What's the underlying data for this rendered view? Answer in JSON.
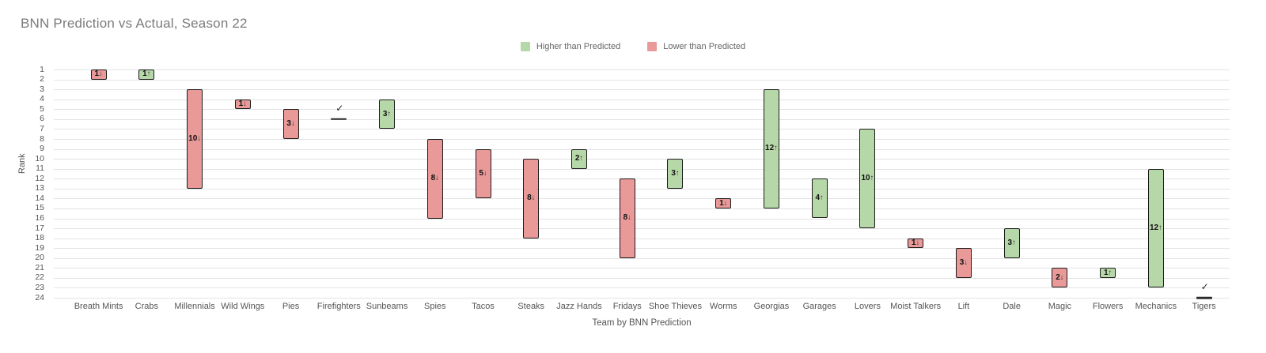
{
  "title": "BNN Prediction vs Actual, Season 22",
  "legend": {
    "higher": {
      "label": "Higher than Predicted",
      "color": "#b6d7a8"
    },
    "lower": {
      "label": "Lower than Predicted",
      "color": "#ea9999"
    }
  },
  "colors": {
    "higher_fill": "#b6d7a8",
    "lower_fill": "#ea9999",
    "bar_stroke": "#1b1b1b",
    "gridline": "#e3e3e3",
    "title_text": "#7b7b7b",
    "axis_text": "#555555"
  },
  "chart_data": {
    "type": "bar",
    "variant": "floating-range-bar",
    "title": "BNN Prediction vs Actual, Season 22",
    "xlabel": "Team by BNN Prediction",
    "ylabel": "Rank",
    "y_axis": {
      "min": 1,
      "max": 24,
      "inverted": true,
      "grid": true
    },
    "legend_position": "top-center",
    "glyphs": {
      "up": "↑",
      "down": "↓",
      "tie_check": "✓"
    },
    "categories": [
      "Breath Mints",
      "Crabs",
      "Millennials",
      "Wild Wings",
      "Pies",
      "Firefighters",
      "Sunbeams",
      "Spies",
      "Tacos",
      "Steaks",
      "Jazz Hands",
      "Fridays",
      "Shoe Thieves",
      "Worms",
      "Georgias",
      "Garages",
      "Lovers",
      "Moist Talkers",
      "Lift",
      "Dale",
      "Magic",
      "Flowers",
      "Mechanics",
      "Tigers"
    ],
    "teams": [
      {
        "name": "Breath Mints",
        "predicted": 1,
        "actual": 2,
        "change": 1,
        "direction": "down"
      },
      {
        "name": "Crabs",
        "predicted": 2,
        "actual": 1,
        "change": 1,
        "direction": "up"
      },
      {
        "name": "Millennials",
        "predicted": 3,
        "actual": 13,
        "change": 10,
        "direction": "down"
      },
      {
        "name": "Wild Wings",
        "predicted": 4,
        "actual": 5,
        "change": 1,
        "direction": "down"
      },
      {
        "name": "Pies",
        "predicted": 5,
        "actual": 8,
        "change": 3,
        "direction": "down"
      },
      {
        "name": "Firefighters",
        "predicted": 6,
        "actual": 6,
        "change": 0,
        "direction": "tie"
      },
      {
        "name": "Sunbeams",
        "predicted": 7,
        "actual": 4,
        "change": 3,
        "direction": "up"
      },
      {
        "name": "Spies",
        "predicted": 8,
        "actual": 16,
        "change": 8,
        "direction": "down"
      },
      {
        "name": "Tacos",
        "predicted": 9,
        "actual": 14,
        "change": 5,
        "direction": "down"
      },
      {
        "name": "Steaks",
        "predicted": 10,
        "actual": 18,
        "change": 8,
        "direction": "down"
      },
      {
        "name": "Jazz Hands",
        "predicted": 11,
        "actual": 9,
        "change": 2,
        "direction": "up"
      },
      {
        "name": "Fridays",
        "predicted": 12,
        "actual": 20,
        "change": 8,
        "direction": "down"
      },
      {
        "name": "Shoe Thieves",
        "predicted": 13,
        "actual": 10,
        "change": 3,
        "direction": "up"
      },
      {
        "name": "Worms",
        "predicted": 14,
        "actual": 15,
        "change": 1,
        "direction": "down"
      },
      {
        "name": "Georgias",
        "predicted": 15,
        "actual": 3,
        "change": 12,
        "direction": "up"
      },
      {
        "name": "Garages",
        "predicted": 16,
        "actual": 12,
        "change": 4,
        "direction": "up"
      },
      {
        "name": "Lovers",
        "predicted": 17,
        "actual": 7,
        "change": 10,
        "direction": "up"
      },
      {
        "name": "Moist Talkers",
        "predicted": 18,
        "actual": 19,
        "change": 1,
        "direction": "down"
      },
      {
        "name": "Lift",
        "predicted": 19,
        "actual": 22,
        "change": 3,
        "direction": "down"
      },
      {
        "name": "Dale",
        "predicted": 20,
        "actual": 17,
        "change": 3,
        "direction": "up"
      },
      {
        "name": "Magic",
        "predicted": 21,
        "actual": 23,
        "change": 2,
        "direction": "down"
      },
      {
        "name": "Flowers",
        "predicted": 22,
        "actual": 21,
        "change": 1,
        "direction": "up"
      },
      {
        "name": "Mechanics",
        "predicted": 23,
        "actual": 11,
        "change": 12,
        "direction": "up"
      },
      {
        "name": "Tigers",
        "predicted": 24,
        "actual": 24,
        "change": 0,
        "direction": "tie"
      }
    ]
  }
}
